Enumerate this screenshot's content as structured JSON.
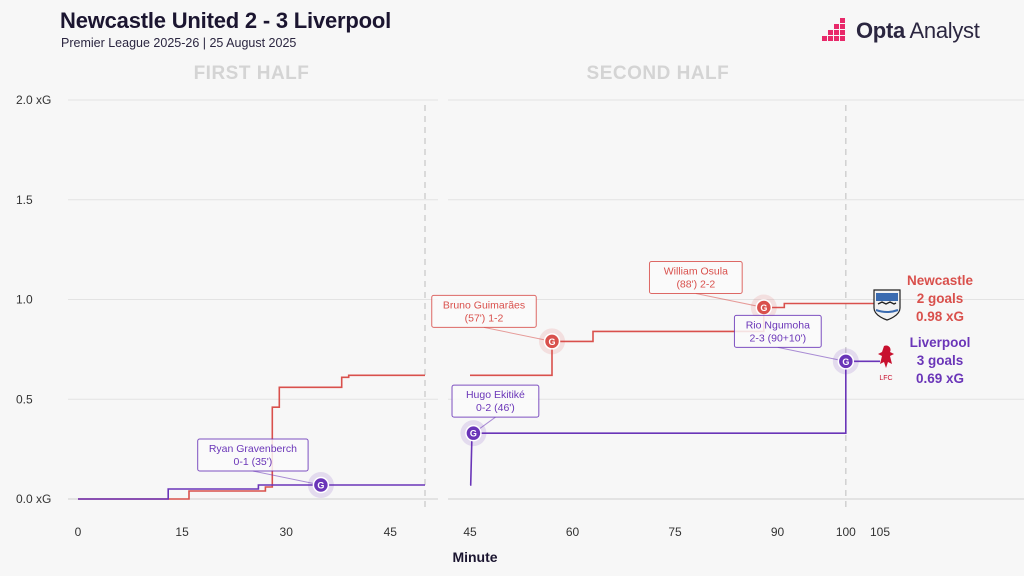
{
  "header": {
    "title": "Newcastle United 2 - 3 Liverpool",
    "subtitle": "Premier League 2025-26 | 25 August 2025",
    "brand_bold": "Opta",
    "brand_light": " Analyst"
  },
  "colors": {
    "newcastle": "#d9504c",
    "liverpool": "#6a35b8",
    "grid": "#e3e3e3",
    "halfline": "#c8c8c8"
  },
  "chart_data": {
    "type": "line",
    "title": "Newcastle United 2 - 3 Liverpool",
    "xlabel": "Minute",
    "ylabel": "",
    "ylim": [
      0,
      2.0
    ],
    "y_ticks": [
      {
        "v": 0.0,
        "label": "0.0 xG"
      },
      {
        "v": 0.5,
        "label": "0.5"
      },
      {
        "v": 1.0,
        "label": "1.0"
      },
      {
        "v": 1.5,
        "label": "1.5"
      },
      {
        "v": 2.0,
        "label": "2.0 xG"
      }
    ],
    "panels": [
      {
        "label": "FIRST HALF",
        "xlim": [
          0,
          50
        ],
        "ticks": [
          0,
          15,
          30,
          45
        ],
        "end_marker": 50
      },
      {
        "label": "SECOND HALF",
        "xlim": [
          45,
          105
        ],
        "ticks": [
          45,
          60,
          75,
          90,
          100,
          105
        ],
        "end_marker": 100
      }
    ],
    "series": [
      {
        "name": "Newcastle",
        "color_key": "newcastle",
        "goals_label": "2 goals",
        "xg_label": "0.98 xG",
        "first_half": [
          [
            0,
            0
          ],
          [
            16,
            0
          ],
          [
            16,
            0.04
          ],
          [
            27,
            0.04
          ],
          [
            27,
            0.06
          ],
          [
            28,
            0.06
          ],
          [
            28,
            0.46
          ],
          [
            29,
            0.46
          ],
          [
            29,
            0.56
          ],
          [
            38,
            0.56
          ],
          [
            38,
            0.61
          ],
          [
            39,
            0.61
          ],
          [
            39,
            0.62
          ],
          [
            50,
            0.62
          ]
        ],
        "second_half": [
          [
            45,
            0.62
          ],
          [
            57,
            0.62
          ],
          [
            57,
            0.79
          ],
          [
            63,
            0.79
          ],
          [
            63,
            0.84
          ],
          [
            88,
            0.84
          ],
          [
            88,
            0.96
          ],
          [
            91,
            0.96
          ],
          [
            91,
            0.98
          ],
          [
            105,
            0.98
          ]
        ]
      },
      {
        "name": "Liverpool",
        "color_key": "liverpool",
        "goals_label": "3 goals",
        "xg_label": "0.69 xG",
        "first_half": [
          [
            0,
            0
          ],
          [
            13,
            0
          ],
          [
            13,
            0.05
          ],
          [
            26,
            0.05
          ],
          [
            26,
            0.07
          ],
          [
            50,
            0.07
          ]
        ],
        "second_half": [
          [
            45,
            0.07
          ],
          [
            45.1,
            0.07
          ],
          [
            45.3,
            0.33
          ],
          [
            46,
            0.33
          ],
          [
            100,
            0.33
          ],
          [
            100,
            0.69
          ],
          [
            105,
            0.69
          ]
        ]
      }
    ],
    "goals": [
      {
        "team": "liverpool",
        "panel": 0,
        "x": 35,
        "y": 0.07,
        "marker": "G",
        "player": "Ryan Gravenberch",
        "detail": "0-1 (35')",
        "label_pos": "above-left"
      },
      {
        "team": "liverpool",
        "panel": 1,
        "x": 45.5,
        "y": 0.33,
        "marker": "G",
        "player": "Hugo Ekitiké",
        "detail": "0-2 (46')",
        "label_pos": "above"
      },
      {
        "team": "newcastle",
        "panel": 1,
        "x": 57,
        "y": 0.79,
        "marker": "G",
        "player": "Bruno Guimarães",
        "detail": "(57') 1-2",
        "label_pos": "above-left"
      },
      {
        "team": "newcastle",
        "panel": 1,
        "x": 88,
        "y": 0.96,
        "marker": "G",
        "player": "William Osula",
        "detail": "(88') 2-2",
        "label_pos": "above-left"
      },
      {
        "team": "liverpool",
        "panel": 1,
        "x": 100,
        "y": 0.69,
        "marker": "G",
        "player": "Rio Ngumoha",
        "detail": "2-3 (90+10')",
        "label_pos": "above-left"
      }
    ],
    "grid": true
  }
}
